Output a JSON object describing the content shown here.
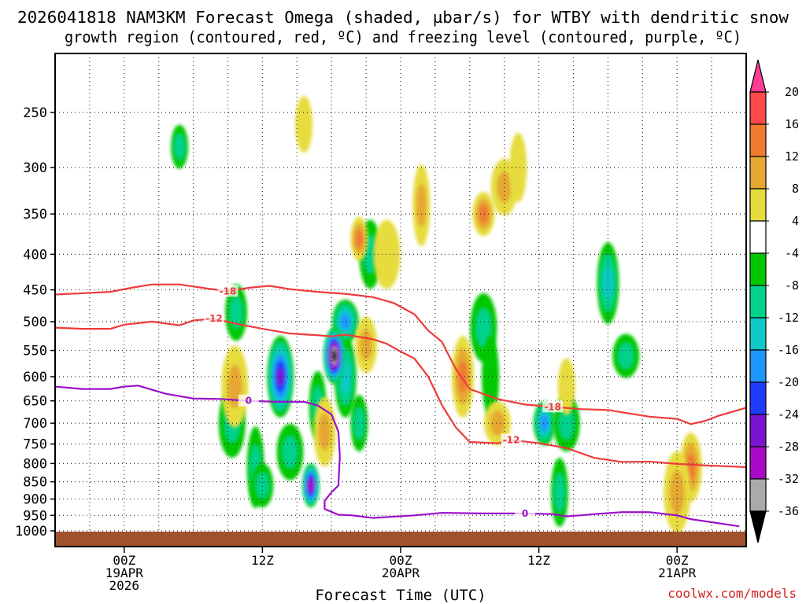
{
  "chart_data": {
    "type": "time-height contour",
    "title_line1": "2026041818 NAM3KM Forecast Omega (shaded, µbar/s) for WTBY with dendritic snow",
    "title_line2": "growth region (contoured, red, ºC) and freezing level (contoured, purple, ºC)",
    "xlabel": "Forecast Time (UTC)",
    "ylabel": "",
    "credit": "coolwx.com/models",
    "x_hours": [
      -5,
      45
    ],
    "x_ticks": [
      {
        "hour": 0,
        "lines": [
          "00Z",
          "19APR",
          "2026"
        ]
      },
      {
        "hour": 10,
        "lines": [
          "12Z"
        ]
      },
      {
        "hour": 20,
        "lines": [
          "00Z",
          "20APR"
        ]
      },
      {
        "hour": 30,
        "lines": [
          "12Z"
        ]
      },
      {
        "hour": 40,
        "lines": [
          "00Z",
          "21APR"
        ]
      }
    ],
    "y_ticks": [
      "250",
      "300",
      "350",
      "400",
      "450",
      "500",
      "550",
      "600",
      "650",
      "700",
      "750",
      "800",
      "850",
      "900",
      "950",
      "1000"
    ],
    "colorbar": {
      "labels": [
        "20",
        "16",
        "12",
        "8",
        "4",
        "-4",
        "-8",
        "-12",
        "-16",
        "-20",
        "-24",
        "-28",
        "-32",
        "-36"
      ],
      "colors": [
        "#ff3c96",
        "#ff4a4a",
        "#f07a30",
        "#e6a830",
        "#e6dc3c",
        "#ffffff",
        "#00c800",
        "#00d28c",
        "#10c8c8",
        "#1e96ff",
        "#1e3cff",
        "#7a14d2",
        "#aa0ac8",
        "#aaaaaa",
        "#000000"
      ]
    },
    "ground": {
      "color": "#a0522d"
    },
    "contours": [
      {
        "label": "-18",
        "color": "#ee3b3b",
        "points": [
          [
            -5,
            457
          ],
          [
            -3,
            455
          ],
          [
            -1,
            453
          ],
          [
            0.5,
            447
          ],
          [
            2,
            442
          ],
          [
            4,
            442
          ],
          [
            6,
            448
          ],
          [
            7.5,
            452
          ],
          [
            9,
            447
          ],
          [
            10.5,
            444
          ],
          [
            12,
            449
          ],
          [
            14,
            453
          ],
          [
            16,
            456
          ],
          [
            18,
            461
          ],
          [
            19.5,
            470
          ],
          [
            21,
            488
          ],
          [
            22,
            515
          ],
          [
            23,
            535
          ],
          [
            23.5,
            560
          ],
          [
            24,
            585
          ],
          [
            25,
            625
          ],
          [
            27,
            646
          ],
          [
            29,
            658
          ],
          [
            31,
            663
          ],
          [
            33,
            668
          ],
          [
            35,
            670
          ],
          [
            36,
            675
          ],
          [
            38,
            685
          ],
          [
            40,
            690
          ],
          [
            41,
            702
          ],
          [
            42,
            695
          ],
          [
            43,
            683
          ],
          [
            45,
            665
          ]
        ]
      },
      {
        "label": "-12",
        "color": "#ee3b3b",
        "points": [
          [
            -5,
            510
          ],
          [
            -3,
            512
          ],
          [
            -1,
            512
          ],
          [
            0,
            505
          ],
          [
            2,
            500
          ],
          [
            4,
            506
          ],
          [
            5,
            498
          ],
          [
            6.5,
            495
          ],
          [
            8,
            503
          ],
          [
            10,
            512
          ],
          [
            12,
            520
          ],
          [
            14,
            523
          ],
          [
            15,
            525
          ],
          [
            16,
            522
          ],
          [
            18,
            530
          ],
          [
            19,
            538
          ],
          [
            20,
            552
          ],
          [
            21,
            565
          ],
          [
            22,
            600
          ],
          [
            23,
            660
          ],
          [
            24,
            710
          ],
          [
            25,
            745
          ],
          [
            27,
            748
          ],
          [
            28,
            740
          ],
          [
            30,
            748
          ],
          [
            32,
            760
          ],
          [
            34,
            785
          ],
          [
            36,
            796
          ],
          [
            38,
            795
          ],
          [
            40,
            801
          ],
          [
            42,
            805
          ],
          [
            44,
            808
          ],
          [
            45,
            810
          ]
        ]
      },
      {
        "label": "0",
        "color": "#9a10c8",
        "points": [
          [
            -5,
            620
          ],
          [
            -3,
            625
          ],
          [
            -1,
            625
          ],
          [
            0,
            620
          ],
          [
            1,
            618
          ],
          [
            3,
            635
          ],
          [
            5,
            645
          ],
          [
            7,
            646
          ],
          [
            9,
            650
          ],
          [
            11,
            652
          ],
          [
            13,
            652
          ],
          [
            14,
            660
          ],
          [
            15,
            680
          ],
          [
            15.5,
            720
          ],
          [
            15.6,
            780
          ],
          [
            15.5,
            860
          ],
          [
            15,
            880
          ],
          [
            14.5,
            905
          ],
          [
            14.5,
            930
          ],
          [
            15.5,
            948
          ],
          [
            16.5,
            950
          ],
          [
            18,
            958
          ],
          [
            19.5,
            954
          ],
          [
            21,
            950
          ],
          [
            23,
            942
          ],
          [
            26,
            944
          ],
          [
            29,
            944
          ],
          [
            31,
            946
          ],
          [
            32,
            953
          ],
          [
            33,
            950
          ],
          [
            34,
            946
          ],
          [
            36,
            940
          ],
          [
            38,
            940
          ],
          [
            40,
            950
          ],
          [
            41,
            962
          ],
          [
            43,
            975
          ],
          [
            44.5,
            985
          ]
        ]
      }
    ],
    "omega_cells": [
      {
        "t": 4,
        "p": 280,
        "v": -8
      },
      {
        "t": 8.1,
        "p": 485,
        "v": -8
      },
      {
        "t": 7.8,
        "p": 700,
        "v": -8
      },
      {
        "t": 9.5,
        "p": 810,
        "v": -8
      },
      {
        "t": 10,
        "p": 860,
        "v": -8
      },
      {
        "t": 12,
        "p": 770,
        "v": -8
      },
      {
        "t": 14,
        "p": 660,
        "v": -8
      },
      {
        "t": 16,
        "p": 600,
        "v": -12
      },
      {
        "t": 16,
        "p": 500,
        "v": -16
      },
      {
        "t": 17,
        "p": 700,
        "v": -8
      },
      {
        "t": 17.8,
        "p": 400,
        "v": -8
      },
      {
        "t": 11.3,
        "p": 600,
        "v": -24
      },
      {
        "t": 13.5,
        "p": 860,
        "v": -28
      },
      {
        "t": 15.2,
        "p": 560,
        "v": -36
      },
      {
        "t": 26,
        "p": 510,
        "v": -8
      },
      {
        "t": 26.5,
        "p": 600,
        "v": -4
      },
      {
        "t": 30.4,
        "p": 700,
        "v": -16
      },
      {
        "t": 32,
        "p": 700,
        "v": -8
      },
      {
        "t": 31.5,
        "p": 880,
        "v": -8
      },
      {
        "t": 35,
        "p": 440,
        "v": -12
      },
      {
        "t": 36.3,
        "p": 560,
        "v": -8
      },
      {
        "t": 13,
        "p": 260,
        "v": 4
      },
      {
        "t": 14.5,
        "p": 720,
        "v": 8
      },
      {
        "t": 8,
        "p": 620,
        "v": 8
      },
      {
        "t": 17,
        "p": 380,
        "v": 12
      },
      {
        "t": 17.5,
        "p": 540,
        "v": 8
      },
      {
        "t": 19,
        "p": 400,
        "v": 4
      },
      {
        "t": 21.5,
        "p": 340,
        "v": 8
      },
      {
        "t": 26,
        "p": 350,
        "v": 12
      },
      {
        "t": 27.5,
        "p": 320,
        "v": 8
      },
      {
        "t": 28.5,
        "p": 300,
        "v": 4
      },
      {
        "t": 24.5,
        "p": 600,
        "v": 12
      },
      {
        "t": 27,
        "p": 700,
        "v": 8
      },
      {
        "t": 32,
        "p": 620,
        "v": 4
      },
      {
        "t": 41,
        "p": 810,
        "v": 12
      },
      {
        "t": 40,
        "p": 880,
        "v": 8
      }
    ]
  }
}
